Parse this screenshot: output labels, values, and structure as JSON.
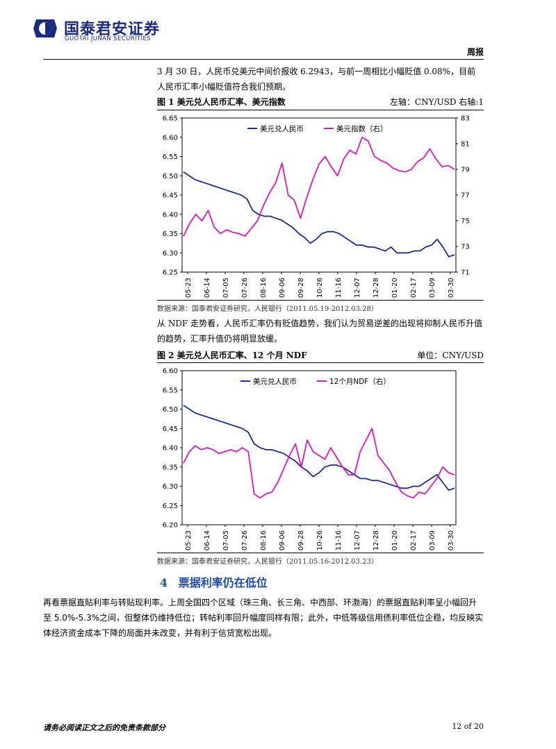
{
  "header": {
    "logo_cn": "国泰君安证券",
    "logo_en": "GUOTAI JUNAN SECURITIES",
    "report_type": "周报",
    "brand_color": "#1a2b7c"
  },
  "paragraph1": "3 月 30 日，人民币兑美元中间价报收 6.2943，与前一周相比小幅贬值 0.08%，目前人民币汇率小幅贬值符合我们预期。",
  "figure1": {
    "title": "图 1 美元兑人民币汇率、美元指数",
    "note": "左轴：CNY/USD 右轴:1",
    "source": "数据来源：国泰君安证券研究，人民银行（2011.05.19-2012.03.28）"
  },
  "paragraph2": "从 NDF 走势看，人民币汇率仍有贬值趋势，我们认为贸易逆差的出现将抑制人民币升值的趋势，汇率升值仍将明显放缓。",
  "figure2": {
    "title": "图 2 美元兑人民币汇率、12 个月 NDF",
    "note": "单位：CNY/USD",
    "source": "数据来源：国泰君安证券研究，人民银行（2011.05.16-2012.03.23）"
  },
  "section4": {
    "number": "4",
    "title": "票据利率仍在低位"
  },
  "paragraph3": "再看票据直贴利率与转贴现利率。上周全国四个区域（珠三角、长三角、中西部、环渤海）的票据直贴利率呈小幅回升至 5.0%-5.3%之间，但整体仍维持低位；转帖利率回升幅度同样有限；此外，中低等级信用债利率低位企稳，均反映实体经济资金成本下降的局面并未改变，并有利于信贷宽松出现。",
  "footer": {
    "disclaimer": "请务必阅读正文之后的免责条款部分",
    "page": "12 of 20"
  },
  "chart_data": [
    {
      "type": "line",
      "x_ticks": [
        "05-23",
        "06-14",
        "07-05",
        "07-26",
        "08-16",
        "09-06",
        "09-28",
        "10-26",
        "11-16",
        "12-07",
        "12-28",
        "01-20",
        "02-17",
        "03-09",
        "03-30"
      ],
      "y_left_ticks": [
        "6.65",
        "6.60",
        "6.55",
        "6.50",
        "6.45",
        "6.40",
        "6.35",
        "6.30",
        "6.25"
      ],
      "y_right_ticks": [
        "83",
        "81",
        "79",
        "77",
        "75",
        "73",
        "71"
      ],
      "ylim_left": [
        6.25,
        6.65
      ],
      "ylim_right": [
        71,
        83
      ],
      "legend_position": "top",
      "series": [
        {
          "name": "美元兑人民币",
          "axis": "left",
          "color": "#1c2a8c",
          "values": [
            6.51,
            6.5,
            6.49,
            6.485,
            6.48,
            6.475,
            6.47,
            6.465,
            6.46,
            6.455,
            6.45,
            6.44,
            6.41,
            6.4,
            6.395,
            6.395,
            6.39,
            6.385,
            6.375,
            6.365,
            6.35,
            6.34,
            6.325,
            6.335,
            6.35,
            6.355,
            6.355,
            6.35,
            6.34,
            6.33,
            6.32,
            6.32,
            6.315,
            6.315,
            6.31,
            6.305,
            6.315,
            6.3,
            6.3,
            6.3,
            6.305,
            6.305,
            6.315,
            6.32,
            6.335,
            6.315,
            6.29,
            6.295
          ]
        },
        {
          "name": "美元指数（右）",
          "axis": "right",
          "color": "#d916c4",
          "values": [
            73.8,
            74.8,
            75.5,
            75.0,
            75.8,
            74.5,
            74.0,
            74.3,
            74.1,
            74.0,
            73.8,
            74.4,
            75.0,
            76.2,
            77.2,
            78.0,
            79.5,
            77.0,
            76.6,
            75.2,
            76.8,
            78.2,
            79.4,
            80.0,
            79.2,
            78.5,
            79.8,
            80.5,
            80.2,
            81.5,
            81.2,
            80.0,
            79.7,
            79.5,
            79.1,
            78.9,
            78.8,
            79.0,
            79.6,
            79.9,
            80.6,
            79.8,
            79.2,
            79.3,
            79.0
          ]
        }
      ]
    },
    {
      "type": "line",
      "x_ticks": [
        "05-23",
        "06-14",
        "07-05",
        "07-26",
        "08-16",
        "09-06",
        "09-28",
        "10-26",
        "11-16",
        "12-07",
        "12-28",
        "01-20",
        "02-17",
        "03-09",
        "03-30"
      ],
      "y_left_ticks": [
        "6.60",
        "6.55",
        "6.50",
        "6.45",
        "6.40",
        "6.35",
        "6.30",
        "6.25",
        "6.20"
      ],
      "ylim_left": [
        6.2,
        6.6
      ],
      "legend_position": "top",
      "series": [
        {
          "name": "美元兑人民币",
          "axis": "left",
          "color": "#1c2a8c",
          "values": [
            6.51,
            6.5,
            6.49,
            6.485,
            6.48,
            6.475,
            6.47,
            6.465,
            6.46,
            6.455,
            6.45,
            6.44,
            6.41,
            6.4,
            6.395,
            6.395,
            6.39,
            6.385,
            6.375,
            6.365,
            6.35,
            6.34,
            6.325,
            6.335,
            6.35,
            6.355,
            6.355,
            6.35,
            6.34,
            6.33,
            6.32,
            6.32,
            6.315,
            6.315,
            6.31,
            6.305,
            6.3,
            6.295,
            6.295,
            6.3,
            6.3,
            6.31,
            6.32,
            6.33,
            6.31,
            6.29,
            6.295
          ]
        },
        {
          "name": "12个月NDF（右）",
          "axis": "left",
          "color": "#d916c4",
          "values": [
            6.36,
            6.39,
            6.405,
            6.395,
            6.4,
            6.395,
            6.385,
            6.39,
            6.395,
            6.39,
            6.4,
            6.39,
            6.28,
            6.27,
            6.28,
            6.285,
            6.31,
            6.345,
            6.38,
            6.41,
            6.35,
            6.42,
            6.39,
            6.38,
            6.37,
            6.4,
            6.375,
            6.35,
            6.33,
            6.33,
            6.39,
            6.42,
            6.45,
            6.38,
            6.36,
            6.34,
            6.31,
            6.285,
            6.275,
            6.27,
            6.285,
            6.28,
            6.3,
            6.32,
            6.35,
            6.335,
            6.33
          ]
        }
      ]
    }
  ]
}
